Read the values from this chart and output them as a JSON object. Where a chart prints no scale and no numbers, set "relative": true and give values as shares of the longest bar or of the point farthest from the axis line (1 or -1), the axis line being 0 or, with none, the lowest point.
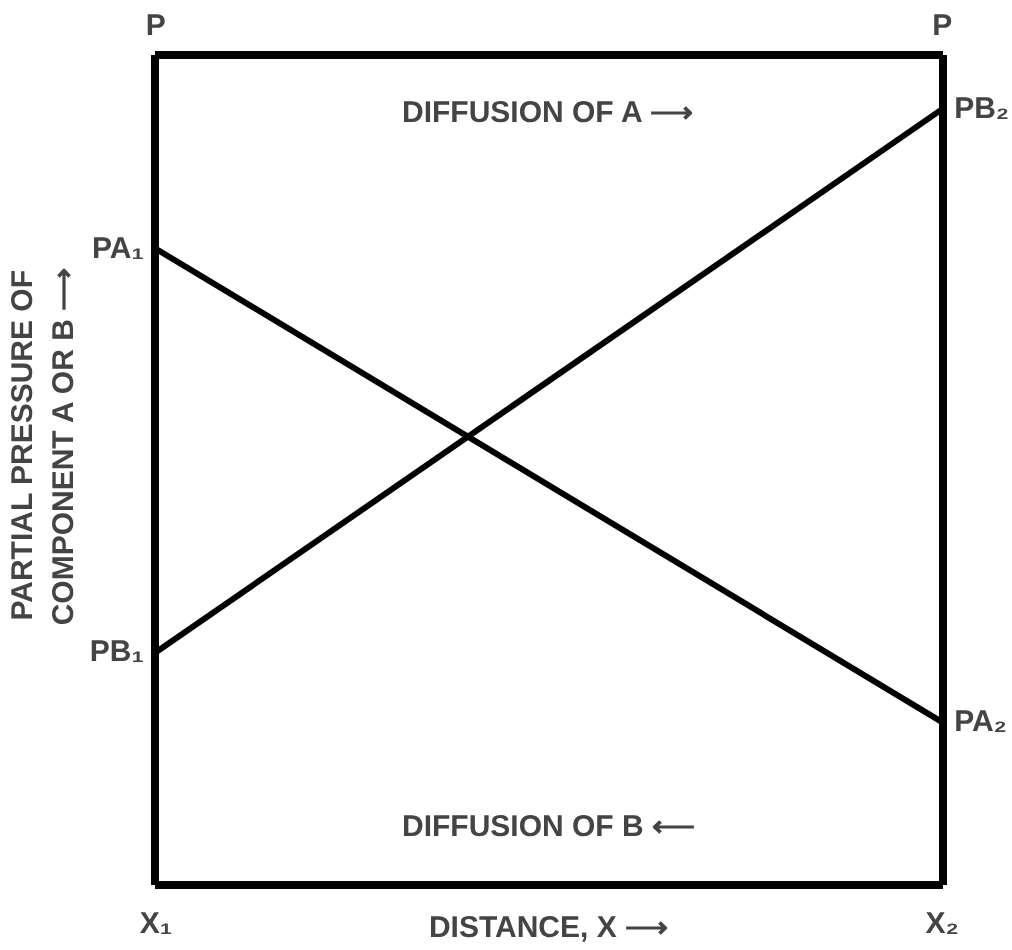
{
  "chart_data": {
    "type": "line",
    "relative": true,
    "categories": [
      "X₁",
      "X₂"
    ],
    "xlabel": "DISTANCE, X ⟶",
    "ylabel": "PARTIAL PRESSURE OF\nCOMPONENT A OR B ⟶",
    "series": [
      {
        "color": "#000000",
        "values": [
          0.82,
          0.21
        ]
      },
      {
        "color": "#000000",
        "values": [
          0.3,
          1.0
        ]
      }
    ],
    "annotations": [
      "P",
      "P",
      "DIFFUSION OF A ⟶",
      "DIFFUSION OF B ⟵",
      {
        "text": "PA₁",
        "x": "X₁",
        "y": 0.82
      },
      {
        "text": "PB₁",
        "x": "X₁",
        "y": 0.3
      },
      {
        "text": "PB₂",
        "x": "X₂",
        "y": 1.0
      },
      {
        "text": "PA₂",
        "x": "X₂",
        "y": 0.21
      }
    ],
    "marker": "none",
    "line_style": "solid"
  }
}
